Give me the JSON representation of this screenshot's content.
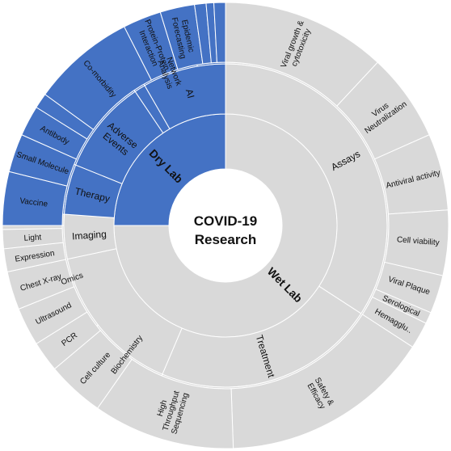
{
  "center": {
    "line1": "COVID-19",
    "line2": "Research"
  },
  "colors": {
    "dry": "#4472c4",
    "wet": "#d9d9d9",
    "stroke": "#ffffff",
    "hub": "#ffffff"
  },
  "chart_data": {
    "type": "sunburst",
    "rings": [
      [
        {
          "label": "Wet Lab",
          "start": 0,
          "end": 270,
          "group": "wet"
        },
        {
          "label": "Dry Lab",
          "start": 270,
          "end": 360,
          "group": "dry"
        }
      ],
      [
        {
          "label": "Assays",
          "start": 0,
          "end": 123,
          "group": "wet"
        },
        {
          "label": "Treatment",
          "start": 123,
          "end": 203,
          "group": "wet"
        },
        {
          "label": "",
          "start": 203,
          "end": 258,
          "group": "wet"
        },
        {
          "label": "Imaging",
          "start": 258,
          "end": 274,
          "group": "wet"
        },
        {
          "label": "Therapy",
          "start": 274,
          "end": 292,
          "group": "dry"
        },
        {
          "label": "Adverse Events",
          "start": 292,
          "end": 326,
          "group": "dry"
        },
        {
          "label": "",
          "start": 326,
          "end": 330,
          "group": "dry"
        },
        {
          "label": "AI",
          "start": 330,
          "end": 360,
          "group": "dry"
        }
      ],
      [
        {
          "label": "",
          "start": 0,
          "end": 203,
          "group": "wet"
        },
        {
          "label": "Biochemistry",
          "start": 203,
          "end": 232,
          "group": "wet"
        },
        {
          "label": "Omics",
          "start": 232,
          "end": 270,
          "group": "wet"
        },
        {
          "label": "",
          "start": 270,
          "end": 274,
          "group": "wet"
        },
        {
          "label": "Therapy",
          "start": 274,
          "end": 292,
          "group": "dry"
        },
        {
          "label": "Adverse Events",
          "start": 292,
          "end": 326,
          "group": "dry"
        },
        {
          "label": "",
          "start": 326,
          "end": 330,
          "group": "dry"
        },
        {
          "label": "Network Analysis",
          "start": 330,
          "end": 350,
          "group": "dry"
        },
        {
          "label": "",
          "start": 350,
          "end": 360,
          "group": "dry"
        }
      ],
      [
        {
          "label": "Viral growth & cytotoxicity",
          "start": 0,
          "end": 43,
          "group": "wet"
        },
        {
          "label": "Virus Neutralization",
          "start": 43,
          "end": 66,
          "group": "wet"
        },
        {
          "label": "Antiviral activity",
          "start": 66,
          "end": 86,
          "group": "wet"
        },
        {
          "label": "Cell viability",
          "start": 86,
          "end": 103,
          "group": "wet"
        },
        {
          "label": "Viral Plaque",
          "start": 103,
          "end": 113,
          "group": "wet"
        },
        {
          "label": "Serological",
          "start": 113,
          "end": 116,
          "group": "wet"
        },
        {
          "label": "Hemagglu..",
          "start": 116,
          "end": 123,
          "group": "wet"
        },
        {
          "label": "Safety & Efficacy",
          "start": 123,
          "end": 178,
          "group": "wet"
        },
        {
          "label": "High Throughput Sequencing",
          "start": 178,
          "end": 215,
          "group": "wet"
        },
        {
          "label": "Cell culture",
          "start": 215,
          "end": 230,
          "group": "wet"
        },
        {
          "label": "PCR",
          "start": 230,
          "end": 238,
          "group": "wet"
        },
        {
          "label": "Ultrasound",
          "start": 238,
          "end": 248,
          "group": "wet"
        },
        {
          "label": "Chest X-ray",
          "start": 248,
          "end": 258,
          "group": "wet"
        },
        {
          "label": "Expression",
          "start": 258,
          "end": 264,
          "group": "wet"
        },
        {
          "label": "Light",
          "start": 264,
          "end": 269,
          "group": "wet"
        },
        {
          "label": "",
          "start": 269,
          "end": 270,
          "group": "wet"
        },
        {
          "label": "Vaccine",
          "start": 270,
          "end": 284,
          "group": "dry"
        },
        {
          "label": "Small Molecule",
          "start": 284,
          "end": 294,
          "group": "dry"
        },
        {
          "label": "Antibody",
          "start": 294,
          "end": 302,
          "group": "dry"
        },
        {
          "label": "",
          "start": 302,
          "end": 306,
          "group": "dry"
        },
        {
          "label": "Co-morbidity",
          "start": 306,
          "end": 333,
          "group": "dry"
        },
        {
          "label": "Protein-Protein Interaction",
          "start": 333,
          "end": 343,
          "group": "dry"
        },
        {
          "label": "Epidemic Forecasting",
          "start": 343,
          "end": 352,
          "group": "dry"
        },
        {
          "label": "",
          "start": 352,
          "end": 355,
          "group": "dry"
        },
        {
          "label": "",
          "start": 355,
          "end": 357,
          "group": "dry"
        },
        {
          "label": "",
          "start": 357,
          "end": 360,
          "group": "dry"
        }
      ]
    ]
  }
}
